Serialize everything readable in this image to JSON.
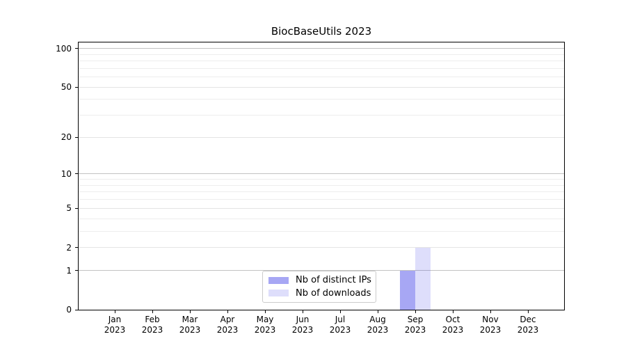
{
  "figure": {
    "title": "BiocBaseUtils 2023"
  },
  "legend": {
    "items": [
      {
        "name": "distinct-ips",
        "label": "Nb of distinct IPs",
        "color": "rgba(72,72,232,0.48)"
      },
      {
        "name": "downloads",
        "label": "Nb of downloads",
        "color": "rgba(72,72,232,0.18)"
      }
    ]
  },
  "chart_data": {
    "type": "bar",
    "title": "BiocBaseUtils 2023",
    "categories": [
      "Jan 2023",
      "Feb 2023",
      "Mar 2023",
      "Apr 2023",
      "May 2023",
      "Jun 2023",
      "Jul 2023",
      "Aug 2023",
      "Sep 2023",
      "Oct 2023",
      "Nov 2023",
      "Dec 2023"
    ],
    "series": [
      {
        "name": "Nb of distinct IPs",
        "values": [
          0,
          0,
          0,
          0,
          0,
          0,
          0,
          0,
          1,
          0,
          0,
          0
        ],
        "color": "rgba(72,72,232,0.48)"
      },
      {
        "name": "Nb of downloads",
        "values": [
          0,
          0,
          0,
          0,
          0,
          0,
          0,
          0,
          2,
          0,
          0,
          0
        ],
        "color": "rgba(72,72,232,0.18)"
      }
    ],
    "xlabel": "",
    "ylabel": "",
    "y_scale": "log1p",
    "ylim": [
      0,
      110
    ],
    "y_major_ticks": [
      0,
      1,
      2,
      5,
      10,
      20,
      50,
      100
    ],
    "y_decade_gridlines": [
      1,
      10,
      100
    ],
    "y_minor_gridlines": [
      3,
      4,
      6,
      7,
      8,
      9,
      30,
      40,
      60,
      70,
      80,
      90
    ],
    "grid": true,
    "legend_position": "lower center"
  },
  "colors": {
    "decade_gridline": "#c2c2c2",
    "major_gridline": "#e4e4e4",
    "minor_gridline": "#ededed",
    "axis": "#000000",
    "background": "#ffffff"
  }
}
